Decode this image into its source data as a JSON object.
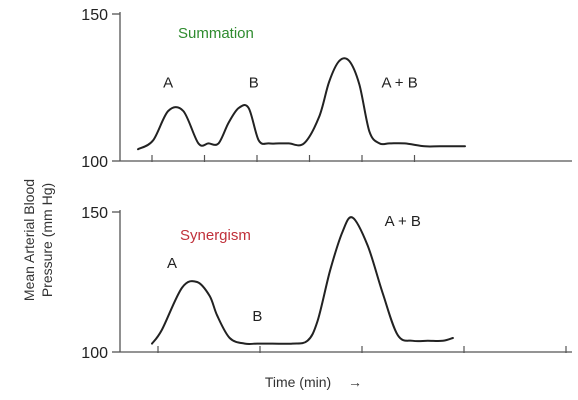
{
  "chart_data": [
    {
      "type": "line",
      "title": "Summation",
      "title_color": "#2e8b2e",
      "ylim": [
        100,
        150
      ],
      "y_ticks": [
        150,
        100
      ],
      "y_tick_labels": [
        "150",
        "100"
      ],
      "x_ticks": [
        1,
        2,
        3,
        4,
        5,
        6
      ],
      "line_color": "#222222",
      "series": [
        {
          "x": [
            0,
            0.3,
            0.6,
            0.9,
            1.2,
            1.4,
            1.6,
            1.8,
            2.0,
            2.2,
            2.4,
            2.6,
            2.8,
            3.0,
            3.3,
            3.6,
            3.8,
            4.0,
            4.2,
            4.4,
            4.6,
            4.8,
            5.0,
            5.3,
            5.7,
            6.0,
            6.5
          ],
          "y": [
            104,
            107,
            117,
            117,
            106,
            106,
            106,
            113,
            118,
            118,
            107,
            106,
            106,
            106,
            106,
            115,
            127,
            134,
            134,
            126,
            110,
            106,
            106,
            106,
            105,
            105,
            105
          ]
        }
      ],
      "annotations": [
        {
          "text": "A",
          "x": 0.6,
          "y": 125
        },
        {
          "text": "B",
          "x": 2.3,
          "y": 125
        },
        {
          "text": "A + B",
          "x": 5.2,
          "y": 125
        }
      ]
    },
    {
      "type": "line",
      "title": "Synergism",
      "title_color": "#c0303a",
      "ylim": [
        100,
        150
      ],
      "y_ticks": [
        150,
        100
      ],
      "y_tick_labels": [
        "150",
        "100"
      ],
      "x_ticks": [
        1,
        2,
        3,
        4,
        5
      ],
      "line_color": "#222222",
      "series": [
        {
          "x": [
            0,
            0.2,
            0.6,
            0.9,
            1.15,
            1.3,
            1.55,
            1.85,
            2.1,
            2.4,
            2.8,
            3.1,
            3.3,
            3.55,
            3.8,
            4.0,
            4.3,
            4.6,
            4.9,
            5.2,
            5.5,
            5.8,
            6.0
          ],
          "y": [
            103,
            108,
            123,
            125,
            120,
            113,
            105,
            103,
            103,
            103,
            103,
            104,
            111,
            129,
            143,
            148,
            138,
            121,
            106,
            104,
            104,
            104,
            105
          ]
        }
      ],
      "annotations": [
        {
          "text": "A",
          "x": 0.4,
          "y": 130
        },
        {
          "text": "B",
          "x": 2.1,
          "y": 111
        },
        {
          "text": "A + B",
          "x": 5.0,
          "y": 145
        }
      ]
    }
  ],
  "ylabel_lines": [
    "Mean Arterial Blood",
    "Pressure (mm Hg)"
  ],
  "xlabel": "Time (min)",
  "xlabel_arrow": "→"
}
